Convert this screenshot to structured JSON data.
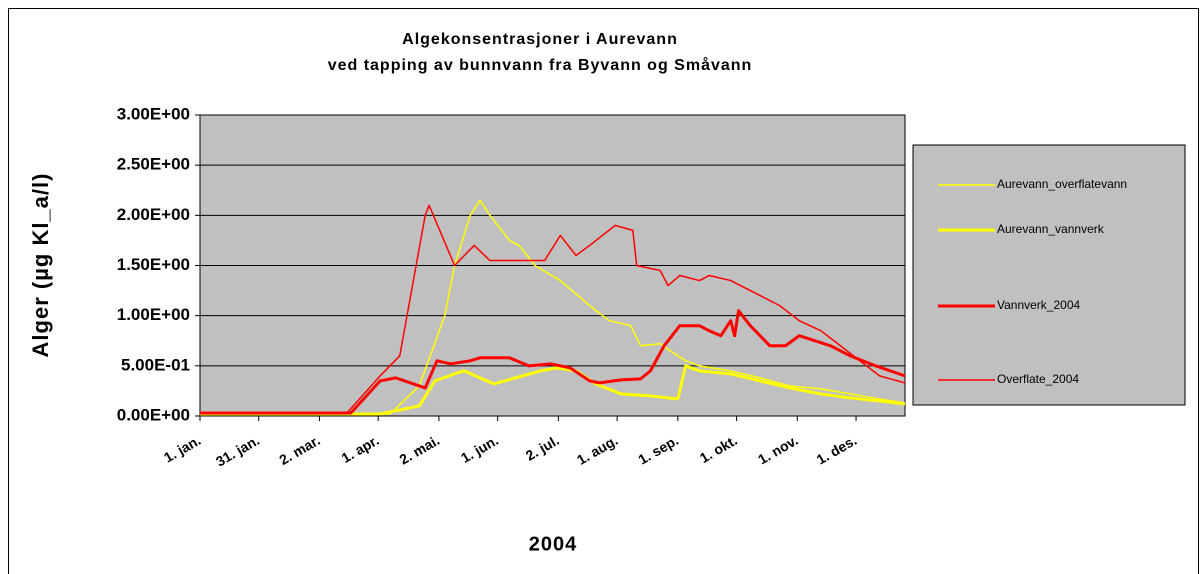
{
  "chart_data": {
    "type": "line",
    "title": "Algekonsentrasjoner i Aurevann",
    "subtitle": "ved tapping av bunnvann fra Byvann og Småvann",
    "y_label": "Alger (µg Kl_a/l)",
    "x_label": "2004",
    "xlim": [
      0,
      360
    ],
    "xticks": [
      {
        "value": 0,
        "label": "1. jan."
      },
      {
        "value": 30,
        "label": "31. jan."
      },
      {
        "value": 61,
        "label": "2. mar."
      },
      {
        "value": 91,
        "label": "1. apr."
      },
      {
        "value": 122,
        "label": "2. mai."
      },
      {
        "value": 152,
        "label": "1. jun."
      },
      {
        "value": 183,
        "label": "2. jul."
      },
      {
        "value": 213,
        "label": "1. aug."
      },
      {
        "value": 244,
        "label": "1. sep."
      },
      {
        "value": 274,
        "label": "1. okt."
      },
      {
        "value": 305,
        "label": "1. nov."
      },
      {
        "value": 335,
        "label": "1. des."
      }
    ],
    "ylim": [
      0,
      3
    ],
    "yticks": [
      {
        "value": 0,
        "label": "0.00E+00"
      },
      {
        "value": 0.5,
        "label": "5.00E-01"
      },
      {
        "value": 1,
        "label": "1.00E+00"
      },
      {
        "value": 1.5,
        "label": "1.50E+00"
      },
      {
        "value": 2,
        "label": "2.00E+00"
      },
      {
        "value": 2.5,
        "label": "2.50E+00"
      },
      {
        "value": 3,
        "label": "3.00E+00"
      }
    ],
    "grid": true,
    "legend": "right",
    "series": [
      {
        "name": "Aurevann_overflatevann",
        "color": "#ffff00",
        "width": 1.5,
        "x": [
          0,
          97,
          112,
          125,
          130,
          138,
          143,
          148,
          158,
          163,
          171,
          184,
          199,
          209,
          220,
          225,
          235,
          240,
          248,
          255,
          271,
          286,
          301,
          317,
          332,
          347,
          360
        ],
        "values": [
          0.02,
          0.02,
          0.3,
          1.0,
          1.5,
          2.0,
          2.15,
          2.0,
          1.75,
          1.7,
          1.5,
          1.35,
          1.1,
          0.95,
          0.9,
          0.7,
          0.72,
          0.65,
          0.55,
          0.5,
          0.45,
          0.38,
          0.3,
          0.27,
          0.22,
          0.17,
          0.13
        ]
      },
      {
        "name": "Aurevann_vannverk",
        "color": "#ffff00",
        "width": 3,
        "x": [
          0,
          92,
          112,
          120,
          130,
          135,
          143,
          150,
          161,
          174,
          182,
          192,
          202,
          215,
          230,
          244,
          248,
          255,
          271,
          286,
          301,
          317,
          332,
          347,
          360
        ],
        "values": [
          0.02,
          0.02,
          0.1,
          0.35,
          0.42,
          0.45,
          0.38,
          0.32,
          0.38,
          0.45,
          0.48,
          0.45,
          0.32,
          0.22,
          0.2,
          0.17,
          0.5,
          0.45,
          0.42,
          0.35,
          0.28,
          0.22,
          0.18,
          0.15,
          0.12
        ]
      },
      {
        "name": "Vannverk_2004",
        "color": "#ff0000",
        "width": 3,
        "x": [
          0,
          77,
          92,
          100,
          115,
          121,
          128,
          138,
          143,
          158,
          168,
          179,
          189,
          199,
          204,
          215,
          225,
          230,
          237,
          245,
          255,
          260,
          266,
          271,
          273,
          275,
          281,
          291,
          299,
          306,
          322,
          332,
          345,
          360
        ],
        "values": [
          0.03,
          0.03,
          0.35,
          0.38,
          0.28,
          0.55,
          0.52,
          0.55,
          0.58,
          0.58,
          0.5,
          0.52,
          0.48,
          0.35,
          0.33,
          0.36,
          0.37,
          0.45,
          0.7,
          0.9,
          0.9,
          0.85,
          0.8,
          0.95,
          0.8,
          1.05,
          0.9,
          0.7,
          0.7,
          0.8,
          0.7,
          0.6,
          0.5,
          0.4
        ]
      },
      {
        "name": "Overflate_2004",
        "color": "#ff0000",
        "width": 1.5,
        "x": [
          0,
          75,
          92,
          102,
          115,
          117,
          130,
          140,
          148,
          176,
          184,
          192,
          199,
          212,
          221,
          223,
          235,
          239,
          245,
          255,
          260,
          271,
          276,
          286,
          296,
          306,
          317,
          327,
          337,
          347,
          360
        ],
        "values": [
          0.03,
          0.03,
          0.4,
          0.6,
          2.0,
          2.1,
          1.5,
          1.7,
          1.55,
          1.55,
          1.8,
          1.6,
          1.7,
          1.9,
          1.85,
          1.5,
          1.45,
          1.3,
          1.4,
          1.35,
          1.4,
          1.35,
          1.3,
          1.2,
          1.1,
          0.95,
          0.85,
          0.7,
          0.55,
          0.4,
          0.33
        ]
      }
    ]
  }
}
